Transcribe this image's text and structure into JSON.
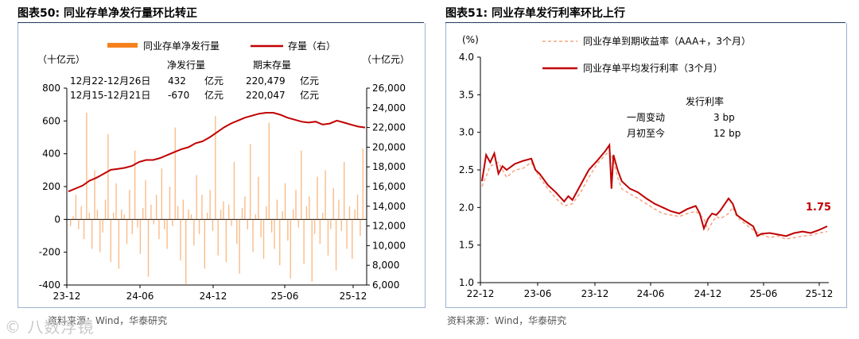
{
  "left_title": "图表50:  同业存单净发行量环比转正",
  "right_title": "图表51:  同业存单发行利率环比上行",
  "left_source": "资料来源：Wind，华泰研究",
  "right_source": "资料来源：Wind，华泰研究",
  "watermark": "© 八数浮镜",
  "chart_data": [
    {
      "type": "bar+line",
      "title": "图表50:  同业存单净发行量环比转正",
      "legend": [
        "同业存单净发行量",
        "存量（右）"
      ],
      "y_left_unit": "（十亿元）",
      "y_right_unit": "（十亿元）",
      "y_left_range": [
        -400,
        800
      ],
      "y_left_ticks": [
        "800",
        "600",
        "400",
        "200",
        "0",
        "-200",
        "-400"
      ],
      "y_right_range": [
        6000,
        26000
      ],
      "y_right_ticks": [
        "26,000",
        "24,000",
        "22,000",
        "20,000",
        "18,000",
        "16,000",
        "14,000",
        "12,000",
        "10,000",
        "8,000",
        "6,000"
      ],
      "x_ticks": [
        "23-12",
        "24-06",
        "24-12",
        "25-06",
        "25-12"
      ],
      "table_headers": [
        "净发行量",
        "期末存量"
      ],
      "table_rows": [
        {
          "period": "12月22-12月26日",
          "net": "432",
          "net_unit": "亿元",
          "stock": "220,479",
          "stock_unit": "亿元"
        },
        {
          "period": "12月15-12月21日",
          "net": "-670",
          "net_unit": "亿元",
          "stock": "220,047",
          "stock_unit": "亿元"
        }
      ],
      "series": [
        {
          "name": "同业存单净发行量",
          "type": "bar",
          "color": "#f5821f",
          "values": [
            -40,
            20,
            150,
            -60,
            80,
            -120,
            650,
            40,
            -180,
            300,
            60,
            -200,
            -80,
            120,
            520,
            -260,
            40,
            220,
            -300,
            60,
            30,
            -150,
            180,
            -90,
            420,
            -50,
            -210,
            70,
            240,
            -350,
            90,
            -30,
            150,
            -120,
            310,
            -60,
            -180,
            200,
            -40,
            560,
            80,
            -250,
            120,
            -400,
            60,
            30,
            -160,
            270,
            -90,
            150,
            -300,
            40,
            180,
            -70,
            630,
            -220,
            60,
            110,
            -260,
            90,
            -40,
            350,
            -150,
            -330,
            70,
            140,
            -60,
            460,
            -200,
            30,
            260,
            -110,
            -240,
            80,
            590,
            -80,
            -180,
            120,
            -280,
            50,
            220,
            -130,
            -360,
            60,
            180,
            -50,
            420,
            -270,
            80,
            140,
            -380,
            -90,
            260,
            -150,
            40,
            300,
            -220,
            -60,
            190,
            -310,
            120,
            -70,
            350,
            -180,
            80,
            -240,
            60,
            150,
            -100,
            432
          ]
        },
        {
          "name": "存量（右）",
          "type": "line",
          "color": "#c00000",
          "points": [
            [
              0,
              15500
            ],
            [
              4,
              15800
            ],
            [
              8,
              16100
            ],
            [
              12,
              16600
            ],
            [
              16,
              16900
            ],
            [
              20,
              17300
            ],
            [
              24,
              17700
            ],
            [
              28,
              17800
            ],
            [
              32,
              17900
            ],
            [
              36,
              18100
            ],
            [
              40,
              18500
            ],
            [
              44,
              18700
            ],
            [
              48,
              18700
            ],
            [
              52,
              18900
            ],
            [
              56,
              19200
            ],
            [
              60,
              19500
            ],
            [
              64,
              19800
            ],
            [
              68,
              20000
            ],
            [
              72,
              20400
            ],
            [
              76,
              20600
            ],
            [
              80,
              21000
            ],
            [
              84,
              21500
            ],
            [
              88,
              22000
            ],
            [
              92,
              22400
            ],
            [
              96,
              22700
            ],
            [
              100,
              23000
            ],
            [
              104,
              23200
            ],
            [
              108,
              23400
            ],
            [
              112,
              23500
            ],
            [
              116,
              23500
            ],
            [
              120,
              23300
            ],
            [
              124,
              23000
            ],
            [
              128,
              22800
            ],
            [
              132,
              22600
            ],
            [
              136,
              22500
            ],
            [
              140,
              22600
            ],
            [
              144,
              22300
            ],
            [
              148,
              22400
            ],
            [
              152,
              22700
            ],
            [
              156,
              22500
            ],
            [
              160,
              22300
            ],
            [
              164,
              22100
            ],
            [
              168,
              22000
            ]
          ]
        }
      ]
    },
    {
      "type": "line",
      "title": "图表51:  同业存单发行利率环比上行",
      "y_unit": "(%)",
      "y_range": [
        1.0,
        4.0
      ],
      "y_ticks": [
        "4.0",
        "3.5",
        "3.0",
        "2.5",
        "2.0",
        "1.5",
        "1.0"
      ],
      "x_ticks": [
        "22-12",
        "23-06",
        "23-12",
        "24-06",
        "24-12",
        "25-06",
        "25-12"
      ],
      "legend": [
        "同业存单到期收益率（AAA+，3个月）",
        "同业存单平均发行利率（3个月）"
      ],
      "annotation_header": "发行利率",
      "annotation_rows": [
        {
          "label": "一周变动",
          "value": "3 bp"
        },
        {
          "label": "月初至今",
          "value": "12 bp"
        }
      ],
      "end_label": "1.75",
      "series": [
        {
          "name": "同业存单到期收益率（AAA+，3个月）",
          "color": "#f4a582",
          "style": "dashed",
          "points": [
            [
              0,
              2.28
            ],
            [
              2,
              2.55
            ],
            [
              4,
              2.6
            ],
            [
              6,
              2.4
            ],
            [
              8,
              2.5
            ],
            [
              10,
              2.52
            ],
            [
              12,
              2.6
            ],
            [
              14,
              2.4
            ],
            [
              16,
              2.25
            ],
            [
              18,
              2.12
            ],
            [
              20,
              2.02
            ],
            [
              22,
              2.05
            ],
            [
              24,
              2.2
            ],
            [
              26,
              2.4
            ],
            [
              28,
              2.58
            ],
            [
              30,
              2.7
            ],
            [
              31,
              2.75
            ],
            [
              32,
              2.62
            ],
            [
              33,
              2.4
            ],
            [
              34,
              2.25
            ],
            [
              36,
              2.18
            ],
            [
              38,
              2.12
            ],
            [
              40,
              2.05
            ],
            [
              42,
              1.98
            ],
            [
              44,
              1.92
            ],
            [
              46,
              1.9
            ],
            [
              48,
              1.88
            ],
            [
              50,
              1.92
            ],
            [
              52,
              1.95
            ],
            [
              54,
              1.85
            ],
            [
              55,
              1.7
            ],
            [
              56,
              1.8
            ],
            [
              57,
              1.88
            ],
            [
              58,
              1.85
            ],
            [
              60,
              1.92
            ],
            [
              61,
              2.0
            ],
            [
              62,
              1.88
            ],
            [
              64,
              1.78
            ],
            [
              66,
              1.7
            ],
            [
              68,
              1.64
            ],
            [
              70,
              1.6
            ],
            [
              72,
              1.62
            ],
            [
              74,
              1.58
            ],
            [
              76,
              1.6
            ],
            [
              78,
              1.62
            ],
            [
              80,
              1.63
            ],
            [
              82,
              1.66
            ],
            [
              84,
              1.68
            ]
          ]
        },
        {
          "name": "同业存单平均发行利率（3个月）",
          "color": "#c00000",
          "style": "solid",
          "points": [
            [
              0,
              2.35
            ],
            [
              1,
              2.7
            ],
            [
              2,
              2.6
            ],
            [
              3,
              2.72
            ],
            [
              4,
              2.45
            ],
            [
              5,
              2.55
            ],
            [
              6,
              2.5
            ],
            [
              8,
              2.58
            ],
            [
              10,
              2.62
            ],
            [
              12,
              2.65
            ],
            [
              13,
              2.5
            ],
            [
              14,
              2.45
            ],
            [
              16,
              2.3
            ],
            [
              18,
              2.2
            ],
            [
              20,
              2.08
            ],
            [
              21,
              2.15
            ],
            [
              22,
              2.1
            ],
            [
              24,
              2.3
            ],
            [
              26,
              2.5
            ],
            [
              28,
              2.62
            ],
            [
              30,
              2.75
            ],
            [
              31,
              2.83
            ],
            [
              31.5,
              2.25
            ],
            [
              32,
              2.7
            ],
            [
              33,
              2.5
            ],
            [
              34,
              2.35
            ],
            [
              36,
              2.25
            ],
            [
              38,
              2.2
            ],
            [
              40,
              2.12
            ],
            [
              42,
              2.05
            ],
            [
              44,
              2.0
            ],
            [
              46,
              1.95
            ],
            [
              48,
              1.92
            ],
            [
              50,
              1.98
            ],
            [
              52,
              2.02
            ],
            [
              53,
              1.92
            ],
            [
              54,
              1.72
            ],
            [
              55,
              1.85
            ],
            [
              56,
              1.92
            ],
            [
              57,
              1.9
            ],
            [
              58,
              1.96
            ],
            [
              60,
              2.12
            ],
            [
              61,
              2.05
            ],
            [
              62,
              1.9
            ],
            [
              64,
              1.82
            ],
            [
              66,
              1.75
            ],
            [
              67,
              1.62
            ],
            [
              68,
              1.65
            ],
            [
              70,
              1.66
            ],
            [
              72,
              1.64
            ],
            [
              74,
              1.62
            ],
            [
              76,
              1.66
            ],
            [
              78,
              1.68
            ],
            [
              80,
              1.66
            ],
            [
              82,
              1.7
            ],
            [
              84,
              1.75
            ]
          ]
        }
      ]
    }
  ]
}
